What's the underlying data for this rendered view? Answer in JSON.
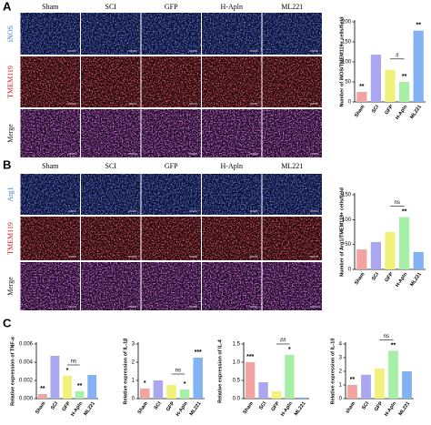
{
  "panel_a": {
    "label": "A",
    "columns": [
      "Sham",
      "SCI",
      "GFP",
      "H-Apln",
      "ML221"
    ],
    "rows": [
      "iNOS",
      "TMEM119",
      "Merge"
    ]
  },
  "panel_b": {
    "label": "B",
    "columns": [
      "Sham",
      "SCI",
      "GFP",
      "H-Apln",
      "ML221"
    ],
    "rows": [
      "Arg1",
      "TMEM119",
      "Merge"
    ]
  },
  "panel_c": {
    "label": "C"
  },
  "chart_data": [
    {
      "type": "bar",
      "y_label": "Number of iNOS/TMEM119+ cells/field",
      "categories": [
        "Sham",
        "SCI",
        "GFP",
        "H-Apln",
        "ML221"
      ],
      "values": [
        25,
        118,
        80,
        50,
        178
      ],
      "colors": [
        "#f4a3a3",
        "#aaa6ef",
        "#f2f27a",
        "#a6efa6",
        "#82b2f2"
      ],
      "ylim": [
        0,
        200
      ],
      "yticks": [
        0,
        50,
        100,
        150,
        200
      ],
      "annotations": [
        {
          "text": "**",
          "index": 0
        },
        {
          "text": "**",
          "index": 3
        },
        {
          "text": "**",
          "index": 4
        }
      ],
      "brackets": [
        {
          "text": "#",
          "from": 2,
          "to": 3
        }
      ]
    },
    {
      "type": "bar",
      "y_label": "Number of Arg1/TMEM119+ cells/field",
      "categories": [
        "Sham",
        "SCI",
        "GFP",
        "H-Apln",
        "ML221"
      ],
      "values": [
        40,
        55,
        75,
        105,
        35
      ],
      "colors": [
        "#f4a3a3",
        "#aaa6ef",
        "#f2f27a",
        "#a6efa6",
        "#82b2f2"
      ],
      "ylim": [
        0,
        150
      ],
      "yticks": [
        0,
        50,
        100,
        150
      ],
      "annotations": [
        {
          "text": "**",
          "index": 3
        }
      ],
      "brackets": [
        {
          "text": "ns",
          "from": 2,
          "to": 3
        }
      ]
    },
    {
      "type": "bar",
      "y_label": "Relative expression of TNF-α",
      "categories": [
        "Sham",
        "SCI",
        "GFP",
        "H-Apln",
        "ML221"
      ],
      "values": [
        0.0005,
        0.0047,
        0.0025,
        0.0008,
        0.0026
      ],
      "colors": [
        "#f4a3a3",
        "#aaa6ef",
        "#f2f27a",
        "#a6efa6",
        "#82b2f2"
      ],
      "ylim": [
        0,
        0.006
      ],
      "yticks": [
        {
          "value": 0,
          "label": "0.000"
        },
        {
          "value": 0.002,
          "label": "0.002"
        },
        {
          "value": 0.004,
          "label": "0.004"
        },
        {
          "value": 0.006,
          "label": "0.006"
        }
      ],
      "annotations": [
        {
          "text": "**",
          "index": 0
        },
        {
          "text": "*",
          "index": 2
        },
        {
          "text": "**",
          "index": 3
        }
      ],
      "brackets": [
        {
          "text": "ns",
          "from": 2,
          "to": 3
        }
      ]
    },
    {
      "type": "bar",
      "y_label": "Relative expression of IL-1β",
      "categories": [
        "Sham",
        "SCI",
        "GFP",
        "H-Apln",
        "ML221"
      ],
      "values": [
        0.55,
        1.0,
        0.75,
        0.5,
        2.25
      ],
      "colors": [
        "#f4a3a3",
        "#aaa6ef",
        "#f2f27a",
        "#a6efa6",
        "#82b2f2"
      ],
      "ylim": [
        0,
        3
      ],
      "yticks": [
        0,
        1,
        2,
        3
      ],
      "annotations": [
        {
          "text": "*",
          "index": 0
        },
        {
          "text": "*",
          "index": 3
        },
        {
          "text": "***",
          "index": 4
        }
      ],
      "brackets": [
        {
          "text": "ns",
          "from": 2,
          "to": 3
        }
      ]
    },
    {
      "type": "bar",
      "y_label": "Relative expression of IL-4",
      "categories": [
        "Sham",
        "SCI",
        "GFP",
        "H-Apln",
        "ML221"
      ],
      "values": [
        1.0,
        0.45,
        0.2,
        1.2,
        0.03
      ],
      "colors": [
        "#f4a3a3",
        "#aaa6ef",
        "#f2f27a",
        "#a6efa6",
        "#82b2f2"
      ],
      "ylim": [
        0,
        1.5
      ],
      "yticks": [
        {
          "value": 0,
          "label": "0.0"
        },
        {
          "value": 0.5,
          "label": "0.5"
        },
        {
          "value": 1,
          "label": "1.0"
        },
        {
          "value": 1.5,
          "label": "1.5"
        }
      ],
      "annotations": [
        {
          "text": "***",
          "index": 0
        },
        {
          "text": "*",
          "index": 3
        }
      ],
      "brackets": [
        {
          "text": "##",
          "from": 2,
          "to": 3
        }
      ]
    },
    {
      "type": "bar",
      "y_label": "Relative expression of IL-10",
      "categories": [
        "sham",
        "SCI",
        "GFP",
        "H-Apln",
        "ML221"
      ],
      "values": [
        1.0,
        1.75,
        2.2,
        3.5,
        2.0
      ],
      "colors": [
        "#f4a3a3",
        "#aaa6ef",
        "#f2f27a",
        "#a6efa6",
        "#82b2f2"
      ],
      "ylim": [
        0,
        4
      ],
      "yticks": [
        0,
        1,
        2,
        3,
        4
      ],
      "annotations": [
        {
          "text": "**",
          "index": 0
        },
        {
          "text": "**",
          "index": 3
        }
      ],
      "brackets": [
        {
          "text": "ns",
          "from": 2,
          "to": 3
        }
      ]
    }
  ]
}
